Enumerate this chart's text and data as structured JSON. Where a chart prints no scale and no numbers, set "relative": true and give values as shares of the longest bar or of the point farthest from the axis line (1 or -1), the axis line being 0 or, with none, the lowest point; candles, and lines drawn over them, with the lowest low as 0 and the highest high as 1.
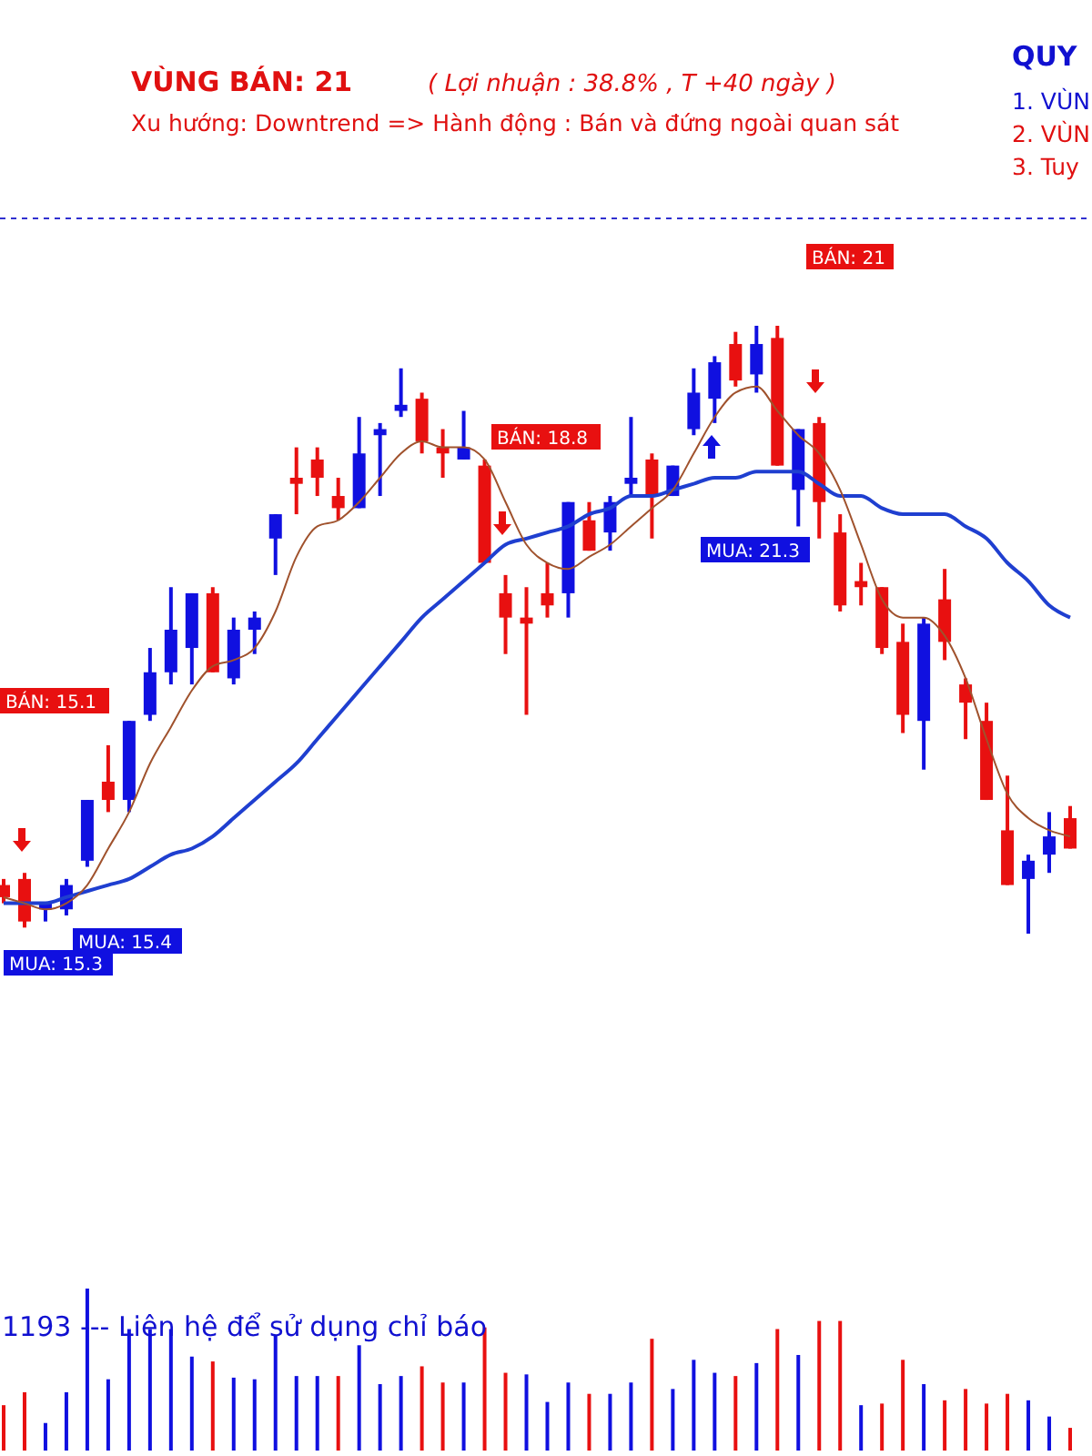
{
  "chart_data": [
    {
      "type": "candlestick",
      "title": "VÙNG BÁN:  21",
      "subtitle": "( Lợi nhuận  : 38.8%  ,  T +40 ngày )",
      "annotations": [
        "Xu hướng:  Downtrend => Hành động : Bán và đứng ngoài quan sát",
        "QUY",
        "1. VÙN",
        "2. VÙN",
        "3. Tuy",
        "BÁN: 15.1",
        "MUA: 15.4",
        "MUA: 15.3",
        "BÁN: 18.8",
        "BÁN: 21",
        "MUA: 21.3"
      ],
      "categories": [
        null,
        null,
        null,
        null,
        null,
        null,
        null,
        null,
        null,
        null,
        null,
        null,
        null,
        null,
        null,
        null,
        null,
        null,
        null,
        null,
        null,
        null,
        null,
        null,
        null,
        null,
        null,
        null,
        null,
        null,
        null,
        null,
        null,
        null,
        null,
        null,
        null,
        null,
        null,
        null,
        null,
        null,
        null,
        null,
        null,
        null,
        null,
        null,
        null,
        null,
        null,
        null
      ],
      "relative": true,
      "ohlc": [
        [
          0.08,
          0.09,
          0.05,
          0.06
        ],
        [
          0.09,
          0.1,
          0.01,
          0.02
        ],
        [
          0.04,
          0.05,
          0.02,
          0.05
        ],
        [
          0.04,
          0.09,
          0.03,
          0.08
        ],
        [
          0.12,
          0.22,
          0.11,
          0.22
        ],
        [
          0.25,
          0.31,
          0.2,
          0.22
        ],
        [
          0.22,
          0.35,
          0.2,
          0.35
        ],
        [
          0.36,
          0.47,
          0.35,
          0.43
        ],
        [
          0.43,
          0.57,
          0.41,
          0.5
        ],
        [
          0.47,
          0.56,
          0.41,
          0.56
        ],
        [
          0.56,
          0.57,
          0.43,
          0.43
        ],
        [
          0.42,
          0.52,
          0.41,
          0.5
        ],
        [
          0.5,
          0.53,
          0.46,
          0.52
        ],
        [
          0.65,
          0.69,
          0.59,
          0.69
        ],
        [
          0.75,
          0.8,
          0.69,
          0.74
        ],
        [
          0.78,
          0.8,
          0.72,
          0.75
        ],
        [
          0.72,
          0.75,
          0.68,
          0.7
        ],
        [
          0.7,
          0.85,
          0.7,
          0.79
        ],
        [
          0.82,
          0.84,
          0.72,
          0.83
        ],
        [
          0.86,
          0.93,
          0.85,
          0.87
        ],
        [
          0.88,
          0.89,
          0.79,
          0.81
        ],
        [
          0.8,
          0.83,
          0.75,
          0.79
        ],
        [
          0.78,
          0.86,
          0.78,
          0.8
        ],
        [
          0.77,
          0.78,
          0.61,
          0.61
        ],
        [
          0.56,
          0.59,
          0.46,
          0.52
        ],
        [
          0.52,
          0.57,
          0.36,
          0.51
        ],
        [
          0.56,
          0.61,
          0.52,
          0.54
        ],
        [
          0.56,
          0.71,
          0.52,
          0.71
        ],
        [
          0.68,
          0.71,
          0.63,
          0.63
        ],
        [
          0.66,
          0.72,
          0.63,
          0.71
        ],
        [
          0.74,
          0.85,
          0.72,
          0.75
        ],
        [
          0.78,
          0.79,
          0.65,
          0.72
        ],
        [
          0.72,
          0.77,
          0.72,
          0.77
        ],
        [
          0.83,
          0.93,
          0.82,
          0.89
        ],
        [
          0.88,
          0.95,
          0.84,
          0.94
        ],
        [
          0.97,
          0.99,
          0.9,
          0.91
        ],
        [
          0.92,
          1.0,
          0.89,
          0.97
        ],
        [
          0.98,
          1.0,
          0.77,
          0.77
        ],
        [
          0.73,
          0.83,
          0.67,
          0.83
        ],
        [
          0.84,
          0.85,
          0.65,
          0.71
        ],
        [
          0.66,
          0.69,
          0.53,
          0.54
        ],
        [
          0.58,
          0.61,
          0.54,
          0.57
        ],
        [
          0.57,
          0.57,
          0.46,
          0.47
        ],
        [
          0.48,
          0.51,
          0.33,
          0.36
        ],
        [
          0.35,
          0.52,
          0.27,
          0.51
        ],
        [
          0.55,
          0.6,
          0.45,
          0.48
        ],
        [
          0.41,
          0.42,
          0.32,
          0.38
        ],
        [
          0.35,
          0.38,
          0.22,
          0.22
        ],
        [
          0.17,
          0.26,
          0.08,
          0.08
        ],
        [
          0.09,
          0.13,
          0.0,
          0.12
        ],
        [
          0.13,
          0.2,
          0.1,
          0.16
        ],
        [
          0.19,
          0.21,
          0.14,
          0.14
        ]
      ],
      "colors": [
        "#e81010",
        "#e81010",
        "#1010e0",
        "#1010e0",
        "#1010e0",
        "#e81010",
        "#1010e0",
        "#1010e0",
        "#1010e0",
        "#1010e0",
        "#e81010",
        "#1010e0",
        "#1010e0",
        "#1010e0",
        "#e81010",
        "#e81010",
        "#e81010",
        "#1010e0",
        "#1010e0",
        "#1010e0",
        "#e81010",
        "#e81010",
        "#1010e0",
        "#e81010",
        "#e81010",
        "#e81010",
        "#e81010",
        "#1010e0",
        "#e81010",
        "#1010e0",
        "#1010e0",
        "#e81010",
        "#1010e0",
        "#1010e0",
        "#1010e0",
        "#e81010",
        "#1010e0",
        "#e81010",
        "#1010e0",
        "#e81010",
        "#e81010",
        "#e81010",
        "#e81010",
        "#e81010",
        "#1010e0",
        "#e81010",
        "#e81010",
        "#e81010",
        "#e81010",
        "#1010e0",
        "#1010e0",
        "#e81010"
      ],
      "series": [
        {
          "type": "line",
          "color": "#1f3fd0",
          "values": [
            0.05,
            0.05,
            0.05,
            0.06,
            0.07,
            0.08,
            0.09,
            0.11,
            0.13,
            0.14,
            0.16,
            0.19,
            0.22,
            0.25,
            0.28,
            0.32,
            0.36,
            0.4,
            0.44,
            0.48,
            0.52,
            0.55,
            0.58,
            0.61,
            0.64,
            0.65,
            0.66,
            0.67,
            0.69,
            0.7,
            0.72,
            0.72,
            0.73,
            0.74,
            0.75,
            0.75,
            0.76,
            0.76,
            0.76,
            0.74,
            0.72,
            0.72,
            0.7,
            0.69,
            0.69,
            0.69,
            0.67,
            0.65,
            0.61,
            0.58,
            0.54,
            0.52
          ]
        },
        {
          "type": "line",
          "color": "#a0522d",
          "values": [
            0.06,
            0.05,
            0.04,
            0.05,
            0.08,
            0.14,
            0.2,
            0.28,
            0.34,
            0.4,
            0.44,
            0.45,
            0.47,
            0.53,
            0.62,
            0.67,
            0.68,
            0.71,
            0.75,
            0.79,
            0.81,
            0.8,
            0.8,
            0.78,
            0.71,
            0.64,
            0.61,
            0.6,
            0.62,
            0.64,
            0.67,
            0.7,
            0.73,
            0.79,
            0.85,
            0.89,
            0.9,
            0.86,
            0.82,
            0.79,
            0.73,
            0.64,
            0.55,
            0.52,
            0.52,
            0.49,
            0.42,
            0.32,
            0.23,
            0.19,
            0.17,
            0.16
          ]
        }
      ]
    },
    {
      "type": "bar",
      "relative": true,
      "annotations": [
        "1193 --- Liên hệ để sử dụng chỉ báo"
      ],
      "categories": [
        null,
        null,
        null,
        null,
        null,
        null,
        null,
        null,
        null,
        null,
        null,
        null,
        null,
        null,
        null,
        null,
        null,
        null,
        null,
        null,
        null,
        null,
        null,
        null,
        null,
        null,
        null,
        null,
        null,
        null,
        null,
        null,
        null,
        null,
        null,
        null,
        null,
        null,
        null,
        null,
        null,
        null,
        null,
        null,
        null,
        null,
        null,
        null,
        null,
        null,
        null,
        null
      ],
      "values": [
        0.28,
        0.36,
        0.17,
        0.36,
        1,
        0.44,
        0.75,
        0.75,
        0.75,
        0.58,
        0.55,
        0.45,
        0.44,
        0.71,
        0.46,
        0.46,
        0.46,
        0.65,
        0.41,
        0.46,
        0.52,
        0.42,
        0.42,
        0.76,
        0.48,
        0.47,
        0.3,
        0.42,
        0.35,
        0.35,
        0.42,
        0.69,
        0.38,
        0.56,
        0.48,
        0.46,
        0.54,
        0.75,
        0.59,
        0.8,
        0.8,
        0.28,
        0.29,
        0.56,
        0.41,
        0.31,
        0.38,
        0.29,
        0.35,
        0.31,
        0.21,
        0.14
      ],
      "colors": [
        "#e81010",
        "#e81010",
        "#1010e0",
        "#1010e0",
        "#1010e0",
        "#1010e0",
        "#1010e0",
        "#1010e0",
        "#1010e0",
        "#1010e0",
        "#e81010",
        "#1010e0",
        "#1010e0",
        "#1010e0",
        "#1010e0",
        "#1010e0",
        "#e81010",
        "#1010e0",
        "#1010e0",
        "#1010e0",
        "#e81010",
        "#e81010",
        "#1010e0",
        "#e81010",
        "#e81010",
        "#1010e0",
        "#1010e0",
        "#1010e0",
        "#e81010",
        "#1010e0",
        "#1010e0",
        "#e81010",
        "#1010e0",
        "#1010e0",
        "#1010e0",
        "#e81010",
        "#1010e0",
        "#e81010",
        "#1010e0",
        "#e81010",
        "#e81010",
        "#1010e0",
        "#e81010",
        "#e81010",
        "#1010e0",
        "#e81010",
        "#e81010",
        "#e81010",
        "#e81010",
        "#1010e0",
        "#1010e0",
        "#e81010"
      ]
    }
  ]
}
